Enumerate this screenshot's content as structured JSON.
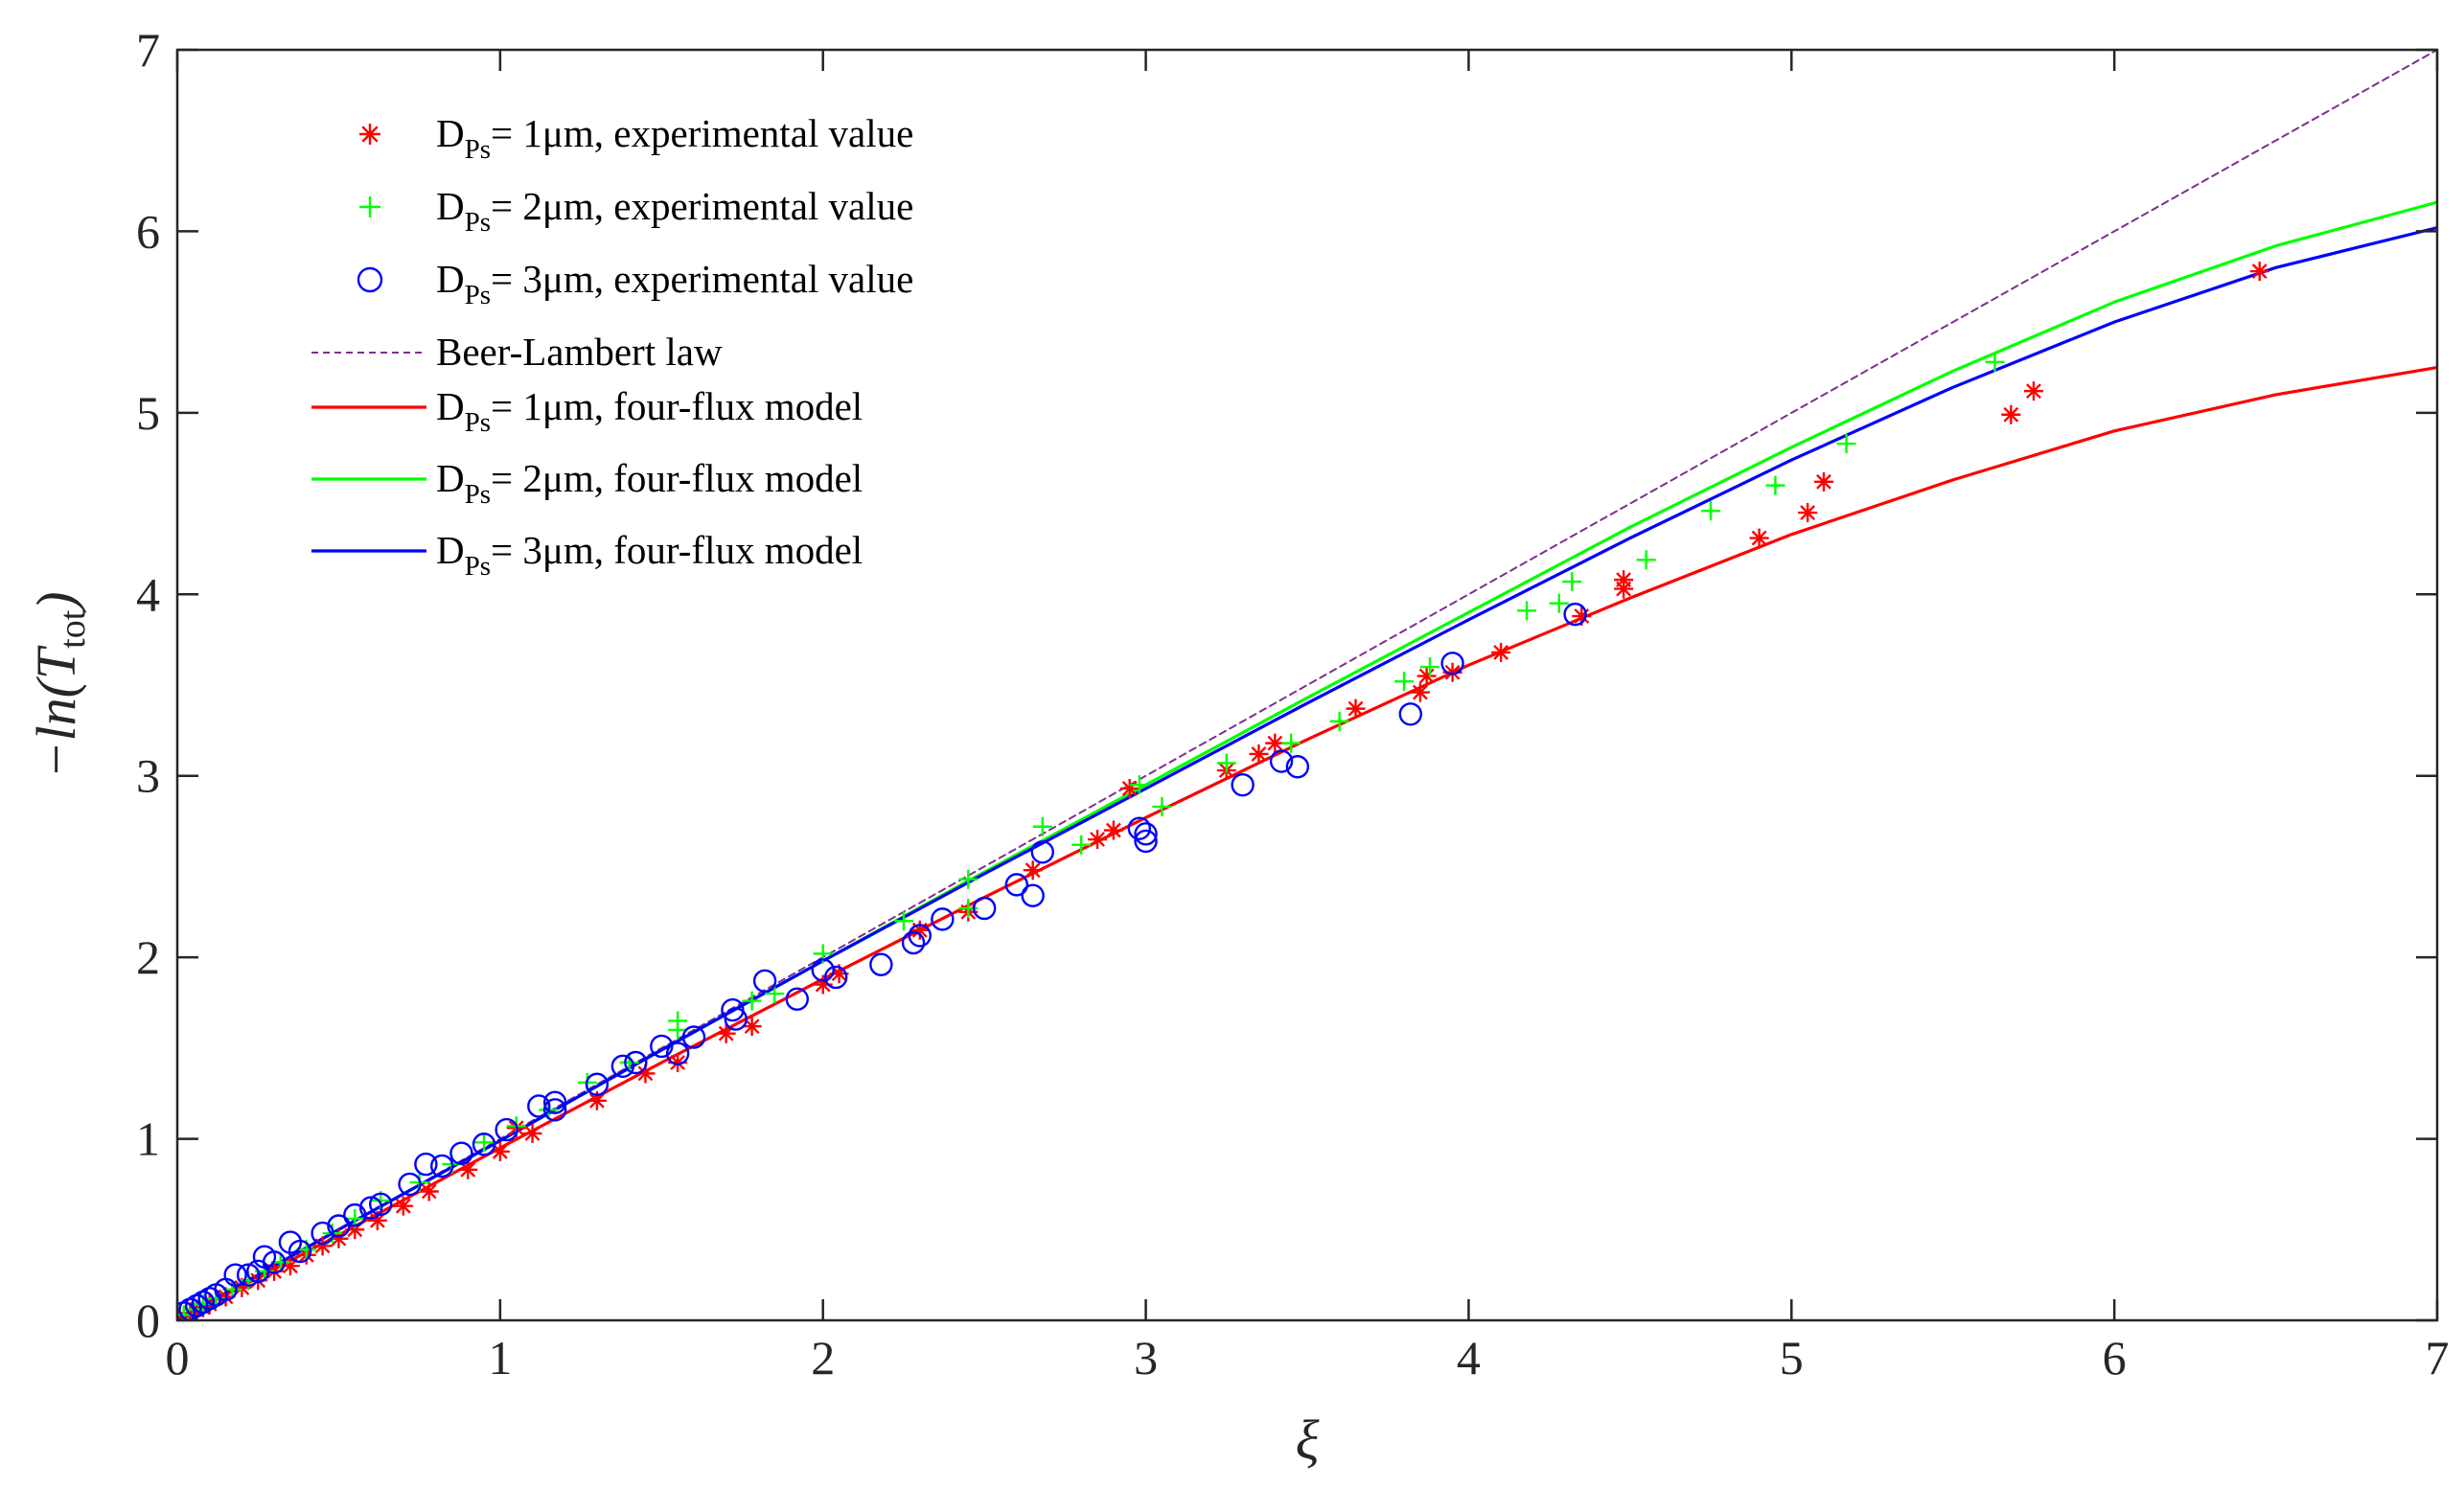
{
  "chart_data": {
    "type": "scatter",
    "title": "",
    "xlabel": "ξ",
    "ylabel_parts": {
      "prefix": "−ln(",
      "symbol": "T",
      "subscript": "tot",
      "suffix": ")"
    },
    "xlim": [
      0,
      7
    ],
    "ylim": [
      0,
      7
    ],
    "xticks": [
      0,
      1,
      2,
      3,
      4,
      5,
      6,
      7
    ],
    "yticks": [
      0,
      1,
      2,
      3,
      4,
      5,
      6,
      7
    ],
    "grid": false,
    "legend_position": "top-left",
    "colors": {
      "red": "#ff0000",
      "green": "#00ff00",
      "blue": "#0000ff",
      "purple": "#7e2f8e",
      "axis": "#262626"
    },
    "series": [
      {
        "name": "D_Ps = 1μm, experimental value",
        "legend": {
          "pre": "D",
          "sub": "Ps",
          "post": "= 1μm, experimental value"
        },
        "kind": "markers",
        "marker": "asterisk",
        "color": "#ff0000",
        "points": [
          [
            0.02,
            0.02
          ],
          [
            0.04,
            0.04
          ],
          [
            0.06,
            0.06
          ],
          [
            0.08,
            0.07
          ],
          [
            0.1,
            0.09
          ],
          [
            0.15,
            0.13
          ],
          [
            0.2,
            0.18
          ],
          [
            0.25,
            0.22
          ],
          [
            0.3,
            0.27
          ],
          [
            0.35,
            0.3
          ],
          [
            0.4,
            0.36
          ],
          [
            0.45,
            0.41
          ],
          [
            0.5,
            0.45
          ],
          [
            0.55,
            0.5
          ],
          [
            0.62,
            0.55
          ],
          [
            0.7,
            0.63
          ],
          [
            0.78,
            0.71
          ],
          [
            0.9,
            0.83
          ],
          [
            1.0,
            0.93
          ],
          [
            1.05,
            1.06
          ],
          [
            1.1,
            1.03
          ],
          [
            1.3,
            1.21
          ],
          [
            1.45,
            1.36
          ],
          [
            1.55,
            1.42
          ],
          [
            1.7,
            1.58
          ],
          [
            1.78,
            1.62
          ],
          [
            2.0,
            1.85
          ],
          [
            2.05,
            1.91
          ],
          [
            2.3,
            2.15
          ],
          [
            2.45,
            2.25
          ],
          [
            2.65,
            2.48
          ],
          [
            2.85,
            2.65
          ],
          [
            2.9,
            2.7
          ],
          [
            2.95,
            2.93
          ],
          [
            3.25,
            3.03
          ],
          [
            3.35,
            3.12
          ],
          [
            3.4,
            3.18
          ],
          [
            3.65,
            3.37
          ],
          [
            3.85,
            3.46
          ],
          [
            3.87,
            3.55
          ],
          [
            3.95,
            3.57
          ],
          [
            4.1,
            3.68
          ],
          [
            4.35,
            3.88
          ],
          [
            4.48,
            4.03
          ],
          [
            4.48,
            4.08
          ],
          [
            4.9,
            4.31
          ],
          [
            5.05,
            4.45
          ],
          [
            5.1,
            4.62
          ],
          [
            5.68,
            4.99
          ],
          [
            5.75,
            5.12
          ],
          [
            6.45,
            5.78
          ]
        ]
      },
      {
        "name": "D_Ps = 2μm, experimental value",
        "legend": {
          "pre": "D",
          "sub": "Ps",
          "post": "= 2μm, experimental value"
        },
        "kind": "markers",
        "marker": "plus",
        "color": "#00ff00",
        "points": [
          [
            0.02,
            0.03
          ],
          [
            0.05,
            0.06
          ],
          [
            0.08,
            0.09
          ],
          [
            0.12,
            0.12
          ],
          [
            0.17,
            0.17
          ],
          [
            0.22,
            0.22
          ],
          [
            0.27,
            0.27
          ],
          [
            0.32,
            0.32
          ],
          [
            0.4,
            0.39
          ],
          [
            0.48,
            0.48
          ],
          [
            0.55,
            0.56
          ],
          [
            0.63,
            0.66
          ],
          [
            0.75,
            0.76
          ],
          [
            0.85,
            0.86
          ],
          [
            0.95,
            0.98
          ],
          [
            1.05,
            1.07
          ],
          [
            1.15,
            1.16
          ],
          [
            1.27,
            1.31
          ],
          [
            1.4,
            1.42
          ],
          [
            1.55,
            1.6
          ],
          [
            1.55,
            1.65
          ],
          [
            1.78,
            1.76
          ],
          [
            1.85,
            1.8
          ],
          [
            2.0,
            2.02
          ],
          [
            2.25,
            2.2
          ],
          [
            2.45,
            2.43
          ],
          [
            2.45,
            2.27
          ],
          [
            2.68,
            2.72
          ],
          [
            2.8,
            2.62
          ],
          [
            2.98,
            2.95
          ],
          [
            3.05,
            2.83
          ],
          [
            3.25,
            3.07
          ],
          [
            3.45,
            3.18
          ],
          [
            3.6,
            3.3
          ],
          [
            3.8,
            3.52
          ],
          [
            3.88,
            3.6
          ],
          [
            4.18,
            3.91
          ],
          [
            4.28,
            3.95
          ],
          [
            4.32,
            4.07
          ],
          [
            4.55,
            4.19
          ],
          [
            4.75,
            4.46
          ],
          [
            4.95,
            4.6
          ],
          [
            5.17,
            4.83
          ],
          [
            5.63,
            5.28
          ]
        ]
      },
      {
        "name": "D_Ps = 3μm, experimental value",
        "legend": {
          "pre": "D",
          "sub": "Ps",
          "post": "= 3μm, experimental value"
        },
        "kind": "markers",
        "marker": "circle",
        "color": "#0000ff",
        "points": [
          [
            0.02,
            0.04
          ],
          [
            0.04,
            0.06
          ],
          [
            0.06,
            0.08
          ],
          [
            0.08,
            0.1
          ],
          [
            0.1,
            0.12
          ],
          [
            0.12,
            0.14
          ],
          [
            0.15,
            0.17
          ],
          [
            0.18,
            0.25
          ],
          [
            0.22,
            0.25
          ],
          [
            0.25,
            0.27
          ],
          [
            0.27,
            0.35
          ],
          [
            0.3,
            0.32
          ],
          [
            0.35,
            0.43
          ],
          [
            0.38,
            0.38
          ],
          [
            0.45,
            0.48
          ],
          [
            0.5,
            0.52
          ],
          [
            0.55,
            0.58
          ],
          [
            0.6,
            0.62
          ],
          [
            0.63,
            0.64
          ],
          [
            0.72,
            0.75
          ],
          [
            0.77,
            0.86
          ],
          [
            0.82,
            0.85
          ],
          [
            0.88,
            0.92
          ],
          [
            0.95,
            0.97
          ],
          [
            1.02,
            1.05
          ],
          [
            1.12,
            1.18
          ],
          [
            1.17,
            1.2
          ],
          [
            1.17,
            1.16
          ],
          [
            1.3,
            1.3
          ],
          [
            1.38,
            1.4
          ],
          [
            1.42,
            1.42
          ],
          [
            1.5,
            1.51
          ],
          [
            1.55,
            1.47
          ],
          [
            1.6,
            1.56
          ],
          [
            1.72,
            1.71
          ],
          [
            1.73,
            1.66
          ],
          [
            1.82,
            1.87
          ],
          [
            1.92,
            1.77
          ],
          [
            2.0,
            1.93
          ],
          [
            2.04,
            1.89
          ],
          [
            2.18,
            1.96
          ],
          [
            2.28,
            2.08
          ],
          [
            2.3,
            2.12
          ],
          [
            2.37,
            2.21
          ],
          [
            2.5,
            2.27
          ],
          [
            2.6,
            2.4
          ],
          [
            2.65,
            2.34
          ],
          [
            2.68,
            2.58
          ],
          [
            2.98,
            2.71
          ],
          [
            3.0,
            2.68
          ],
          [
            3.0,
            2.64
          ],
          [
            3.3,
            2.95
          ],
          [
            3.42,
            3.08
          ],
          [
            3.47,
            3.05
          ],
          [
            3.82,
            3.34
          ],
          [
            3.95,
            3.62
          ],
          [
            4.33,
            3.89
          ]
        ]
      },
      {
        "name": "Beer-Lambert law",
        "legend": {
          "pre": "",
          "sub": "",
          "post": "Beer-Lambert law"
        },
        "kind": "line",
        "style": "dashed",
        "color": "#7e2f8e",
        "points": [
          [
            0,
            0
          ],
          [
            1,
            1
          ],
          [
            2,
            2
          ],
          [
            3,
            3
          ],
          [
            4,
            4
          ],
          [
            5,
            5
          ],
          [
            6,
            6
          ],
          [
            7,
            7
          ]
        ]
      },
      {
        "name": "D_Ps = 1μm, four-flux model",
        "legend": {
          "pre": "D",
          "sub": "Ps",
          "post": "= 1μm, four-flux model"
        },
        "kind": "line",
        "style": "solid",
        "color": "#ff0000",
        "points": [
          [
            0,
            0
          ],
          [
            0.5,
            0.47
          ],
          [
            1,
            0.95
          ],
          [
            1.5,
            1.42
          ],
          [
            2,
            1.88
          ],
          [
            2.5,
            2.33
          ],
          [
            3,
            2.77
          ],
          [
            3.5,
            3.2
          ],
          [
            4,
            3.61
          ],
          [
            4.5,
            3.98
          ],
          [
            5,
            4.33
          ],
          [
            5.5,
            4.63
          ],
          [
            6,
            4.9
          ],
          [
            6.5,
            5.1
          ],
          [
            7,
            5.25
          ]
        ]
      },
      {
        "name": "D_Ps = 2μm, four-flux model",
        "legend": {
          "pre": "D",
          "sub": "Ps",
          "post": "= 2μm, four-flux model"
        },
        "kind": "line",
        "style": "solid",
        "color": "#00ff00",
        "points": [
          [
            0,
            0
          ],
          [
            0.5,
            0.5
          ],
          [
            1,
            0.99
          ],
          [
            1.5,
            1.49
          ],
          [
            2,
            1.98
          ],
          [
            2.5,
            2.47
          ],
          [
            3,
            2.95
          ],
          [
            3.5,
            3.43
          ],
          [
            4,
            3.9
          ],
          [
            4.5,
            4.37
          ],
          [
            5,
            4.81
          ],
          [
            5.5,
            5.23
          ],
          [
            6,
            5.61
          ],
          [
            6.5,
            5.92
          ],
          [
            7,
            6.16
          ]
        ]
      },
      {
        "name": "D_Ps = 3μm, four-flux model",
        "legend": {
          "pre": "D",
          "sub": "Ps",
          "post": "= 3μm, four-flux model"
        },
        "kind": "line",
        "style": "solid",
        "color": "#0000ff",
        "points": [
          [
            0,
            0
          ],
          [
            0.5,
            0.5
          ],
          [
            1,
            0.99
          ],
          [
            1.5,
            1.49
          ],
          [
            2,
            1.98
          ],
          [
            2.5,
            2.46
          ],
          [
            3,
            2.93
          ],
          [
            3.5,
            3.4
          ],
          [
            4,
            3.86
          ],
          [
            4.5,
            4.31
          ],
          [
            5,
            4.74
          ],
          [
            5.5,
            5.14
          ],
          [
            6,
            5.5
          ],
          [
            6.5,
            5.8
          ],
          [
            7,
            6.02
          ]
        ]
      }
    ]
  }
}
